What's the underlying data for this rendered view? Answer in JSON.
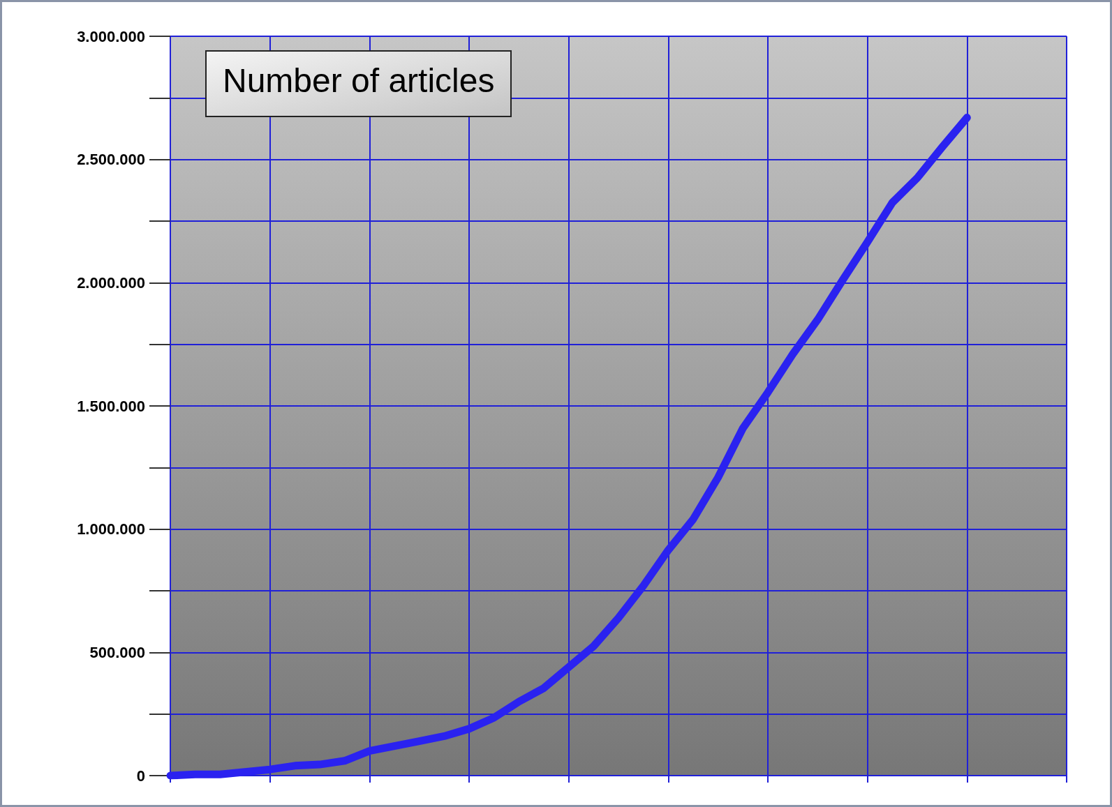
{
  "chart_data": {
    "type": "line",
    "title": "Number of articles",
    "categories": [
      null,
      null,
      null,
      null,
      null,
      null,
      null,
      null,
      null,
      null,
      null,
      null,
      null,
      null,
      null,
      null,
      null,
      null,
      null,
      null,
      null,
      null,
      null,
      null,
      null,
      null,
      null,
      null,
      null,
      null,
      null,
      null,
      null,
      null,
      null,
      null,
      null
    ],
    "series": [
      {
        "color": "#2a22f0",
        "values": [
          0,
          5000,
          5000,
          15000,
          25000,
          40000,
          45000,
          60000,
          100000,
          120000,
          140000,
          160000,
          190000,
          235000,
          300000,
          355000,
          440000,
          525000,
          640000,
          770000,
          915000,
          1040000,
          1210000,
          1410000,
          1555000,
          1710000,
          1850000,
          2010000,
          2165000,
          2325000,
          2425000,
          2550000,
          2670000,
          null,
          null,
          null,
          null
        ]
      }
    ],
    "ylim": [
      0,
      3000000
    ],
    "yticks": [
      {
        "value": 0,
        "label": "0"
      },
      {
        "value": 250000,
        "label": null
      },
      {
        "value": 500000,
        "label": "500.000"
      },
      {
        "value": 750000,
        "label": null
      },
      {
        "value": 1000000,
        "label": "1.000.000"
      },
      {
        "value": 1250000,
        "label": null
      },
      {
        "value": 1500000,
        "label": "1.500.000"
      },
      {
        "value": 1750000,
        "label": null
      },
      {
        "value": 2000000,
        "label": "2.000.000"
      },
      {
        "value": 2250000,
        "label": null
      },
      {
        "value": 2500000,
        "label": "2.500.000"
      },
      {
        "value": 2750000,
        "label": null
      },
      {
        "value": 3000000,
        "label": "3.000.000"
      }
    ],
    "grid": true,
    "line_style": "solid"
  }
}
